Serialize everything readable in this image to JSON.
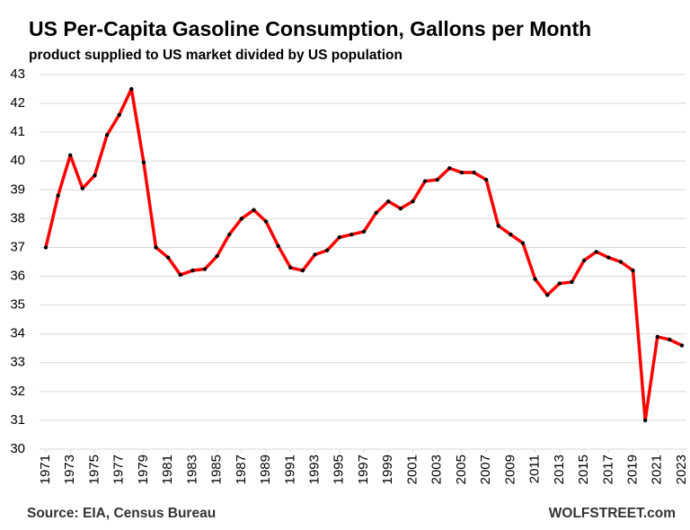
{
  "chart_data": {
    "type": "line",
    "title": "US Per-Capita Gasoline Consumption, Gallons per Month",
    "subtitle": "product supplied to US market divided by US population",
    "source": "Source: EIA, Census Bureau",
    "brand": "WOLFSTREET.com",
    "x": [
      1971,
      1972,
      1973,
      1974,
      1975,
      1976,
      1977,
      1978,
      1979,
      1980,
      1981,
      1982,
      1983,
      1984,
      1985,
      1986,
      1987,
      1988,
      1989,
      1990,
      1991,
      1992,
      1993,
      1994,
      1995,
      1996,
      1997,
      1998,
      1999,
      2000,
      2001,
      2002,
      2003,
      2004,
      2005,
      2006,
      2007,
      2008,
      2009,
      2010,
      2011,
      2012,
      2013,
      2014,
      2015,
      2016,
      2017,
      2018,
      2019,
      2020,
      2021,
      2022,
      2023
    ],
    "series": [
      {
        "color": "#ff0000",
        "marker_color": "#000000",
        "values": [
          37.0,
          38.8,
          40.2,
          39.05,
          39.5,
          40.9,
          41.6,
          42.5,
          39.95,
          37.0,
          36.65,
          36.05,
          36.2,
          36.25,
          36.7,
          37.45,
          38.0,
          38.3,
          37.9,
          37.05,
          36.3,
          36.2,
          36.75,
          36.9,
          37.35,
          37.45,
          37.55,
          38.2,
          38.6,
          38.35,
          38.6,
          39.3,
          39.35,
          39.75,
          39.6,
          39.6,
          39.35,
          37.75,
          37.45,
          37.15,
          35.9,
          35.35,
          35.75,
          35.8,
          36.55,
          36.85,
          36.65,
          36.5,
          36.2,
          31.0,
          33.9,
          33.8,
          33.6
        ]
      }
    ],
    "xlim": [
      1971,
      2023
    ],
    "xticks": [
      1971,
      1973,
      1975,
      1977,
      1979,
      1981,
      1983,
      1985,
      1987,
      1989,
      1991,
      1993,
      1995,
      1997,
      1999,
      2001,
      2003,
      2005,
      2007,
      2009,
      2011,
      2013,
      2015,
      2017,
      2019,
      2021,
      2023
    ],
    "ylim": [
      30,
      43
    ],
    "yticks": [
      30,
      31,
      32,
      33,
      34,
      35,
      36,
      37,
      38,
      39,
      40,
      41,
      42,
      43
    ],
    "grid": true
  }
}
